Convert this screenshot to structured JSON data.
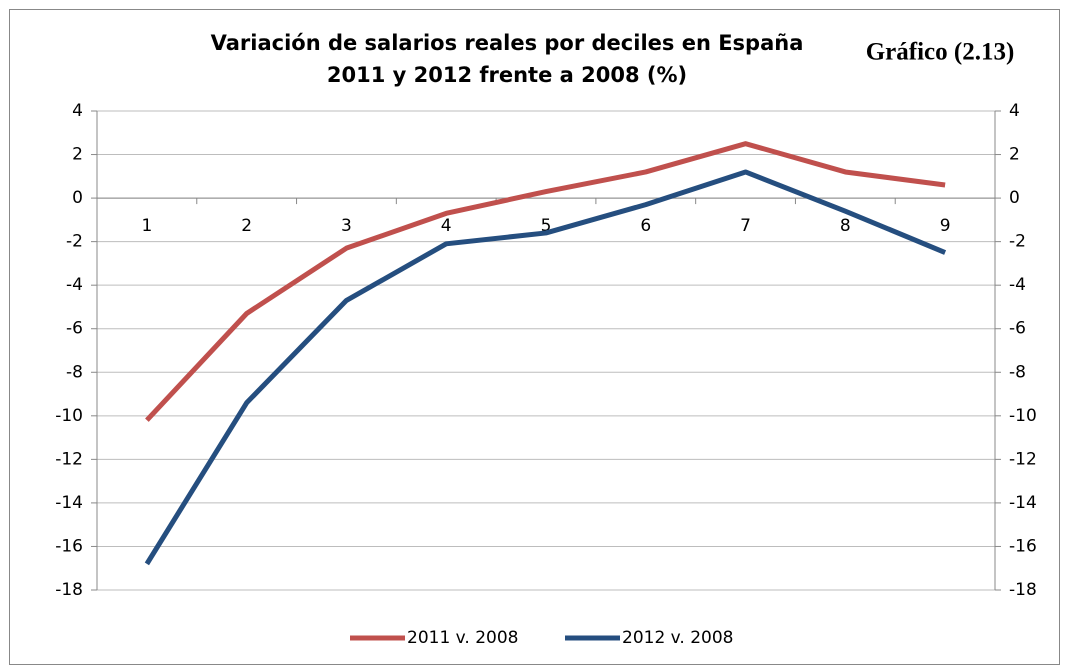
{
  "chart_data": {
    "type": "line",
    "title": [
      "Variación de salarios reales por deciles en España",
      "2011 y 2012 frente a 2008 (%)"
    ],
    "annotation": "Gráfico (2.13)",
    "categories": [
      "1",
      "2",
      "3",
      "4",
      "5",
      "6",
      "7",
      "8",
      "9"
    ],
    "series": [
      {
        "name": "2011 v. 2008",
        "color": "#c0504d",
        "values": [
          -10.2,
          -5.3,
          -2.3,
          -0.7,
          0.3,
          1.2,
          2.5,
          1.2,
          0.6
        ]
      },
      {
        "name": "2012 v. 2008",
        "color": "#254e7f",
        "values": [
          -16.8,
          -9.4,
          -4.7,
          -2.1,
          -1.6,
          -0.3,
          1.2,
          -0.6,
          -2.5
        ]
      }
    ],
    "ylim": [
      -18,
      4
    ],
    "yticks": [
      -18,
      -16,
      -14,
      -12,
      -10,
      -8,
      -6,
      -4,
      -2,
      0,
      2,
      4
    ],
    "y2lim": [
      -18,
      4
    ],
    "y2ticks": [
      -18,
      -16,
      -14,
      -12,
      -10,
      -8,
      -6,
      -4,
      -2,
      0,
      2,
      4
    ],
    "grid": true,
    "legend": "bottom"
  }
}
